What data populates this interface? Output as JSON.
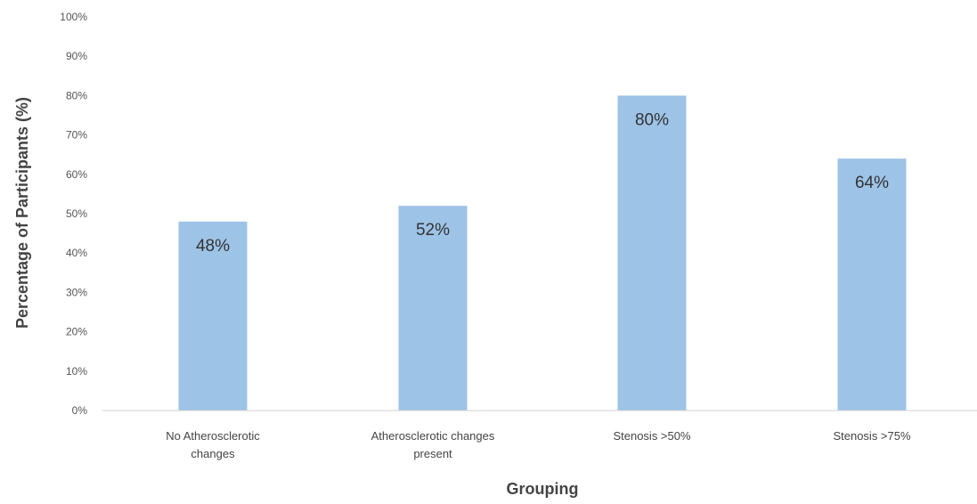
{
  "chart_data": {
    "type": "bar",
    "title": "",
    "xlabel": "Grouping",
    "ylabel": "Percentage of Participants (%)",
    "categories": [
      [
        "No Atherosclerotic",
        "changes"
      ],
      [
        "Atherosclerotic changes",
        "present"
      ],
      [
        "Stenosis >50%"
      ],
      [
        "Stenosis >75%"
      ]
    ],
    "values": [
      48,
      52,
      80,
      64
    ],
    "data_labels": [
      "48%",
      "52%",
      "80%",
      "64%"
    ],
    "ylim": [
      0,
      100
    ],
    "yticks": [
      0,
      10,
      20,
      30,
      40,
      50,
      60,
      70,
      80,
      90,
      100
    ],
    "ytick_labels": [
      "0%",
      "10%",
      "20%",
      "30%",
      "40%",
      "50%",
      "60%",
      "70%",
      "80%",
      "90%",
      "100%"
    ],
    "grid": false,
    "legend": "none",
    "colors": {
      "bar": "#9dc3e6",
      "axis": "#d0d0d0"
    }
  }
}
